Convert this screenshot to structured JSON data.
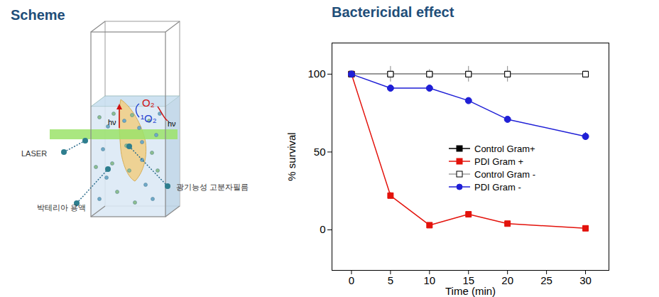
{
  "scheme": {
    "title": "Scheme",
    "laser": "LASER",
    "solution": "박테리아 용액",
    "film": "광기능성 고분자필름",
    "photon": "hν",
    "oxygen": "O₂",
    "singlet_oxygen": "¹O₂"
  },
  "chart_data": {
    "type": "line",
    "title": "Bactericidal effect",
    "x_label": "Time (min)",
    "y_label": "% survival",
    "x": [
      0,
      5,
      10,
      15,
      20,
      30
    ],
    "xlim": [
      -2.5,
      33
    ],
    "xticks": [
      0,
      5,
      10,
      15,
      20,
      25,
      30
    ],
    "ylim": [
      -26,
      120
    ],
    "yticks": [
      0,
      50,
      100
    ],
    "legend": "right",
    "series": [
      {
        "name": "Control Gram+",
        "color": "#000000",
        "marker": "square",
        "line_style": "solid",
        "values": [
          100,
          100,
          100,
          100,
          100,
          100
        ],
        "errors": [
          0,
          0,
          0,
          0,
          0,
          0
        ]
      },
      {
        "name": "PDI Gram +",
        "color": "#e3120b",
        "marker": "square",
        "line_style": "solid",
        "values": [
          100,
          22,
          3,
          10,
          4,
          1
        ],
        "errors": [
          0,
          2,
          1,
          1,
          1,
          1
        ]
      },
      {
        "name": "Control Gram -",
        "color": "#a0a0a0",
        "marker": "square_open",
        "line_style": "solid",
        "values": [
          100,
          100,
          100,
          100,
          100,
          100
        ],
        "errors": [
          0,
          5,
          3,
          5,
          5,
          2
        ]
      },
      {
        "name": "PDI Gram -",
        "color": "#1f1fd6",
        "marker": "circle",
        "line_style": "solid",
        "values": [
          100,
          91,
          91,
          83,
          71,
          60
        ],
        "errors": [
          0,
          2,
          1.5,
          1,
          1.5,
          2.5
        ]
      }
    ]
  }
}
